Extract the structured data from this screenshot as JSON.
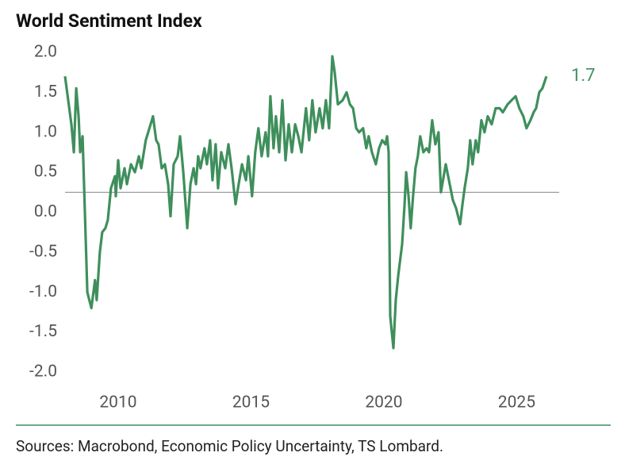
{
  "chart_data": {
    "type": "line",
    "title": "World Sentiment Index",
    "source": "Sources: Macrobond, Economic Policy Uncertainty, TS Lombard.",
    "end_label": 1.7,
    "hline": 0.25,
    "xlim": [
      2008,
      2026.6
    ],
    "ylim": [
      -2,
      2
    ],
    "xticks": [
      2010,
      2015,
      2020,
      2025
    ],
    "yticks": [
      {
        "value": 2,
        "label": "2.0"
      },
      {
        "value": 1.5,
        "label": "1.5"
      },
      {
        "value": 1,
        "label": "1.0"
      },
      {
        "value": 0.5,
        "label": "0.5"
      },
      {
        "value": 0,
        "label": "0.0"
      },
      {
        "value": -0.5,
        "label": "-0.5"
      },
      {
        "value": -1,
        "label": "-1.0"
      },
      {
        "value": -1.5,
        "label": "-1.5"
      },
      {
        "value": -2,
        "label": "-2.0"
      }
    ],
    "series": [
      {
        "name": "World Sentiment Index",
        "color": "#3f8f5c",
        "x": [
          2008.0,
          2008.12,
          2008.24,
          2008.33,
          2008.42,
          2008.51,
          2008.57,
          2008.66,
          2008.84,
          2008.99,
          2009.13,
          2009.19,
          2009.31,
          2009.4,
          2009.52,
          2009.61,
          2009.73,
          2009.88,
          2009.91,
          2010.0,
          2010.09,
          2010.24,
          2010.33,
          2010.48,
          2010.63,
          2010.78,
          2010.87,
          2011.04,
          2011.22,
          2011.31,
          2011.43,
          2011.52,
          2011.64,
          2011.76,
          2011.88,
          2011.97,
          2012.09,
          2012.24,
          2012.33,
          2012.45,
          2012.6,
          2012.72,
          2012.84,
          2012.93,
          2013.01,
          2013.1,
          2013.25,
          2013.34,
          2013.46,
          2013.55,
          2013.67,
          2013.76,
          2013.88,
          2014.03,
          2014.15,
          2014.27,
          2014.42,
          2014.51,
          2014.66,
          2014.81,
          2014.9,
          2015.04,
          2015.16,
          2015.28,
          2015.4,
          2015.55,
          2015.64,
          2015.73,
          2015.85,
          2015.94,
          2016.06,
          2016.18,
          2016.3,
          2016.42,
          2016.54,
          2016.66,
          2016.78,
          2016.9,
          2017.07,
          2017.19,
          2017.31,
          2017.43,
          2017.58,
          2017.7,
          2017.82,
          2017.94,
          2018.06,
          2018.15,
          2018.27,
          2018.45,
          2018.6,
          2018.72,
          2018.84,
          2018.96,
          2019.07,
          2019.22,
          2019.34,
          2019.43,
          2019.55,
          2019.7,
          2019.82,
          2019.94,
          2020.06,
          2020.12,
          2020.18,
          2020.24,
          2020.36,
          2020.45,
          2020.54,
          2020.69,
          2020.78,
          2020.84,
          2020.93,
          2021.01,
          2021.1,
          2021.19,
          2021.28,
          2021.37,
          2021.49,
          2021.61,
          2021.7,
          2021.82,
          2021.94,
          2022.06,
          2022.15,
          2022.33,
          2022.48,
          2022.6,
          2022.72,
          2022.87,
          2022.96,
          2023.04,
          2023.16,
          2023.25,
          2023.34,
          2023.46,
          2023.55,
          2023.67,
          2023.79,
          2023.91,
          2024.06,
          2024.21,
          2024.36,
          2024.48,
          2024.66,
          2024.81,
          2024.96,
          2025.1,
          2025.25,
          2025.37,
          2025.52,
          2025.64,
          2025.73,
          2025.85,
          2025.97,
          2026.12
        ],
        "values": [
          1.7,
          1.4,
          1.1,
          0.75,
          1.55,
          1.2,
          0.75,
          0.95,
          -1.0,
          -1.2,
          -0.85,
          -1.1,
          -0.5,
          -0.25,
          -0.2,
          -0.1,
          0.3,
          0.45,
          0.2,
          0.65,
          0.3,
          0.55,
          0.35,
          0.6,
          0.5,
          0.7,
          0.55,
          0.9,
          1.1,
          1.2,
          0.9,
          0.85,
          0.55,
          0.6,
          0.35,
          -0.05,
          0.6,
          0.7,
          0.95,
          0.5,
          -0.2,
          0.35,
          0.55,
          0.35,
          0.7,
          0.55,
          0.8,
          0.6,
          0.9,
          0.4,
          0.85,
          0.3,
          0.75,
          0.55,
          0.85,
          0.55,
          0.1,
          0.3,
          0.6,
          0.4,
          0.7,
          0.2,
          0.75,
          1.05,
          0.7,
          1.0,
          0.7,
          1.45,
          0.8,
          1.2,
          0.75,
          1.4,
          0.65,
          1.1,
          0.75,
          1.1,
          0.95,
          0.75,
          1.3,
          0.9,
          1.4,
          1.0,
          1.3,
          1.05,
          1.4,
          1.05,
          1.95,
          1.75,
          1.35,
          1.4,
          1.5,
          1.35,
          1.3,
          1.05,
          1.0,
          1.05,
          0.8,
          0.95,
          0.75,
          0.6,
          0.8,
          0.9,
          0.85,
          0.95,
          0.75,
          -1.3,
          -1.7,
          -1.1,
          -0.8,
          -0.4,
          0.1,
          0.5,
          0.2,
          -0.2,
          0.2,
          0.55,
          0.7,
          0.95,
          0.75,
          0.8,
          0.75,
          1.15,
          0.85,
          1.0,
          0.25,
          0.6,
          0.35,
          0.15,
          0.05,
          -0.15,
          0.1,
          0.3,
          0.55,
          0.9,
          0.6,
          0.9,
          0.75,
          1.15,
          1.0,
          1.2,
          1.1,
          1.3,
          1.3,
          1.25,
          1.35,
          1.4,
          1.45,
          1.3,
          1.2,
          1.05,
          1.15,
          1.25,
          1.3,
          1.5,
          1.55,
          1.7
        ]
      }
    ]
  }
}
